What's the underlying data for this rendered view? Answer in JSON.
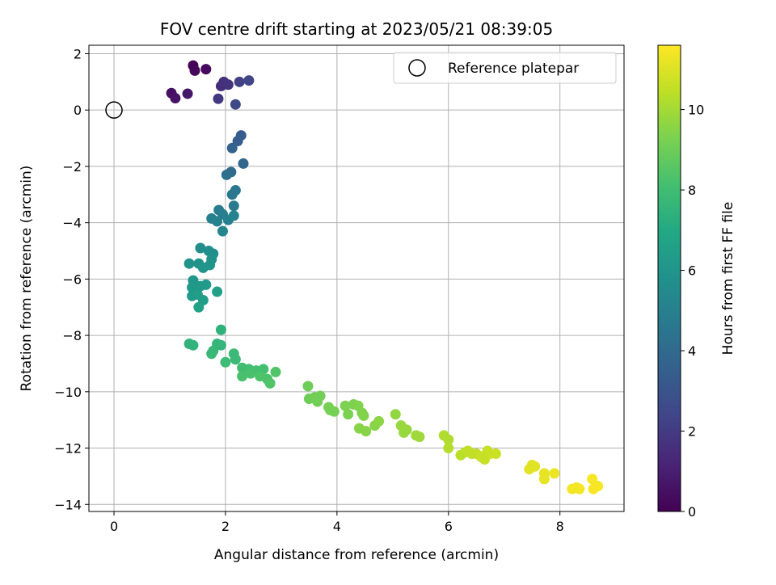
{
  "chart_data": {
    "type": "scatter",
    "title": "FOV centre drift starting at 2023/05/21 08:39:05",
    "xlabel": "Angular distance from reference (arcmin)",
    "ylabel": "Rotation from reference (arcmin)",
    "xlim": [
      -0.45,
      9.15
    ],
    "ylim": [
      -14.25,
      2.3
    ],
    "xticks": [
      0,
      2,
      4,
      6,
      8
    ],
    "yticks": [
      2,
      0,
      -2,
      -4,
      -6,
      -8,
      -10,
      -12,
      -14
    ],
    "grid": true,
    "legend": {
      "placement": "top-right",
      "entries": [
        "Reference platepar"
      ]
    },
    "reference_point": {
      "x": 0,
      "y": 0
    },
    "colorbar": {
      "label": "Hours from first FF file",
      "range": [
        0,
        11.6
      ],
      "ticks": [
        0,
        2,
        4,
        6,
        8,
        10
      ],
      "colormap": "viridis",
      "colors": [
        "#440154",
        "#482475",
        "#414487",
        "#355f8d",
        "#2a788e",
        "#21918c",
        "#22a884",
        "#44bf70",
        "#7ad151",
        "#bddf26",
        "#fde725"
      ]
    },
    "points": [
      [
        1.42,
        1.58,
        0.1
      ],
      [
        1.45,
        1.4,
        0.2
      ],
      [
        1.65,
        1.45,
        0.3
      ],
      [
        1.03,
        0.6,
        0.5
      ],
      [
        1.1,
        0.42,
        0.6
      ],
      [
        1.32,
        0.58,
        0.7
      ],
      [
        1.92,
        0.85,
        1.5
      ],
      [
        1.97,
        1.0,
        1.6
      ],
      [
        2.05,
        0.9,
        1.7
      ],
      [
        1.87,
        0.4,
        1.9
      ],
      [
        2.25,
        1.0,
        2.2
      ],
      [
        2.42,
        1.05,
        2.4
      ],
      [
        2.18,
        0.2,
        2.6
      ],
      [
        2.28,
        -0.9,
        3.3
      ],
      [
        2.22,
        -1.1,
        3.4
      ],
      [
        2.12,
        -1.35,
        3.6
      ],
      [
        2.32,
        -1.9,
        3.8
      ],
      [
        2.1,
        -2.2,
        4.0
      ],
      [
        2.02,
        -2.3,
        4.2
      ],
      [
        2.18,
        -2.85,
        4.5
      ],
      [
        2.12,
        -3.0,
        4.6
      ],
      [
        2.15,
        -3.4,
        4.7
      ],
      [
        1.88,
        -3.55,
        4.8
      ],
      [
        1.95,
        -3.7,
        4.9
      ],
      [
        2.05,
        -3.9,
        5.0
      ],
      [
        1.75,
        -3.85,
        5.0
      ],
      [
        1.85,
        -3.95,
        5.1
      ],
      [
        2.15,
        -3.75,
        5.1
      ],
      [
        1.95,
        -4.3,
        5.2
      ],
      [
        1.55,
        -4.9,
        5.6
      ],
      [
        1.7,
        -5.0,
        5.7
      ],
      [
        1.78,
        -5.1,
        5.7
      ],
      [
        1.75,
        -5.3,
        5.8
      ],
      [
        1.52,
        -5.45,
        5.9
      ],
      [
        1.35,
        -5.45,
        5.9
      ],
      [
        1.6,
        -5.6,
        6.0
      ],
      [
        1.72,
        -5.5,
        6.0
      ],
      [
        1.42,
        -6.05,
        6.1
      ],
      [
        1.4,
        -6.3,
        6.2
      ],
      [
        1.55,
        -6.25,
        6.2
      ],
      [
        1.65,
        -6.2,
        6.3
      ],
      [
        1.4,
        -6.6,
        6.3
      ],
      [
        1.5,
        -6.55,
        6.4
      ],
      [
        1.6,
        -6.75,
        6.4
      ],
      [
        1.85,
        -6.45,
        6.5
      ],
      [
        1.52,
        -7.0,
        6.6
      ],
      [
        1.92,
        -7.8,
        7.4
      ],
      [
        1.35,
        -8.3,
        7.5
      ],
      [
        1.42,
        -8.35,
        7.5
      ],
      [
        1.85,
        -8.3,
        7.6
      ],
      [
        1.92,
        -8.35,
        7.6
      ],
      [
        1.78,
        -8.55,
        7.7
      ],
      [
        1.75,
        -8.65,
        7.7
      ],
      [
        2.15,
        -8.65,
        7.8
      ],
      [
        2.18,
        -8.85,
        7.8
      ],
      [
        2.0,
        -8.95,
        7.9
      ],
      [
        2.3,
        -9.15,
        8.0
      ],
      [
        2.42,
        -9.2,
        8.0
      ],
      [
        2.55,
        -9.25,
        8.1
      ],
      [
        2.68,
        -9.2,
        8.1
      ],
      [
        2.3,
        -9.45,
        8.2
      ],
      [
        2.45,
        -9.35,
        8.2
      ],
      [
        2.62,
        -9.45,
        8.3
      ],
      [
        2.75,
        -9.55,
        8.3
      ],
      [
        2.9,
        -9.3,
        8.4
      ],
      [
        2.8,
        -9.7,
        8.4
      ],
      [
        3.48,
        -9.8,
        9.0
      ],
      [
        3.5,
        -10.25,
        9.0
      ],
      [
        3.6,
        -10.2,
        9.1
      ],
      [
        3.7,
        -10.15,
        9.1
      ],
      [
        3.65,
        -10.35,
        9.1
      ],
      [
        3.85,
        -10.55,
        9.2
      ],
      [
        3.88,
        -10.65,
        9.2
      ],
      [
        3.95,
        -10.7,
        9.2
      ],
      [
        4.15,
        -10.5,
        9.3
      ],
      [
        4.2,
        -10.8,
        9.3
      ],
      [
        4.3,
        -10.45,
        9.3
      ],
      [
        4.38,
        -10.5,
        9.4
      ],
      [
        4.45,
        -10.75,
        9.4
      ],
      [
        4.48,
        -10.85,
        9.4
      ],
      [
        4.4,
        -11.3,
        9.5
      ],
      [
        4.52,
        -11.4,
        9.5
      ],
      [
        4.68,
        -11.2,
        9.5
      ],
      [
        4.75,
        -11.05,
        9.6
      ],
      [
        5.05,
        -10.8,
        9.7
      ],
      [
        5.15,
        -11.2,
        9.8
      ],
      [
        5.2,
        -11.45,
        9.8
      ],
      [
        5.25,
        -11.35,
        9.8
      ],
      [
        5.42,
        -11.55,
        9.9
      ],
      [
        5.48,
        -11.6,
        9.9
      ],
      [
        5.92,
        -11.55,
        10.2
      ],
      [
        6.0,
        -11.7,
        10.2
      ],
      [
        6.0,
        -12.0,
        10.3
      ],
      [
        6.22,
        -12.25,
        10.4
      ],
      [
        6.3,
        -12.15,
        10.4
      ],
      [
        6.35,
        -12.1,
        10.5
      ],
      [
        6.42,
        -12.2,
        10.5
      ],
      [
        6.5,
        -12.2,
        10.5
      ],
      [
        6.58,
        -12.3,
        10.6
      ],
      [
        6.65,
        -12.4,
        10.6
      ],
      [
        6.7,
        -12.1,
        10.6
      ],
      [
        6.75,
        -12.2,
        10.7
      ],
      [
        6.85,
        -12.2,
        10.7
      ],
      [
        6.62,
        -12.35,
        10.6
      ],
      [
        7.45,
        -12.75,
        11.1
      ],
      [
        7.5,
        -12.6,
        11.1
      ],
      [
        7.55,
        -12.65,
        11.1
      ],
      [
        7.72,
        -12.9,
        11.2
      ],
      [
        7.72,
        -13.1,
        11.2
      ],
      [
        7.9,
        -12.9,
        11.3
      ],
      [
        8.22,
        -13.45,
        11.4
      ],
      [
        8.3,
        -13.4,
        11.4
      ],
      [
        8.35,
        -13.45,
        11.4
      ],
      [
        8.58,
        -13.1,
        11.5
      ],
      [
        8.6,
        -13.45,
        11.5
      ],
      [
        8.68,
        -13.35,
        11.5
      ]
    ]
  }
}
